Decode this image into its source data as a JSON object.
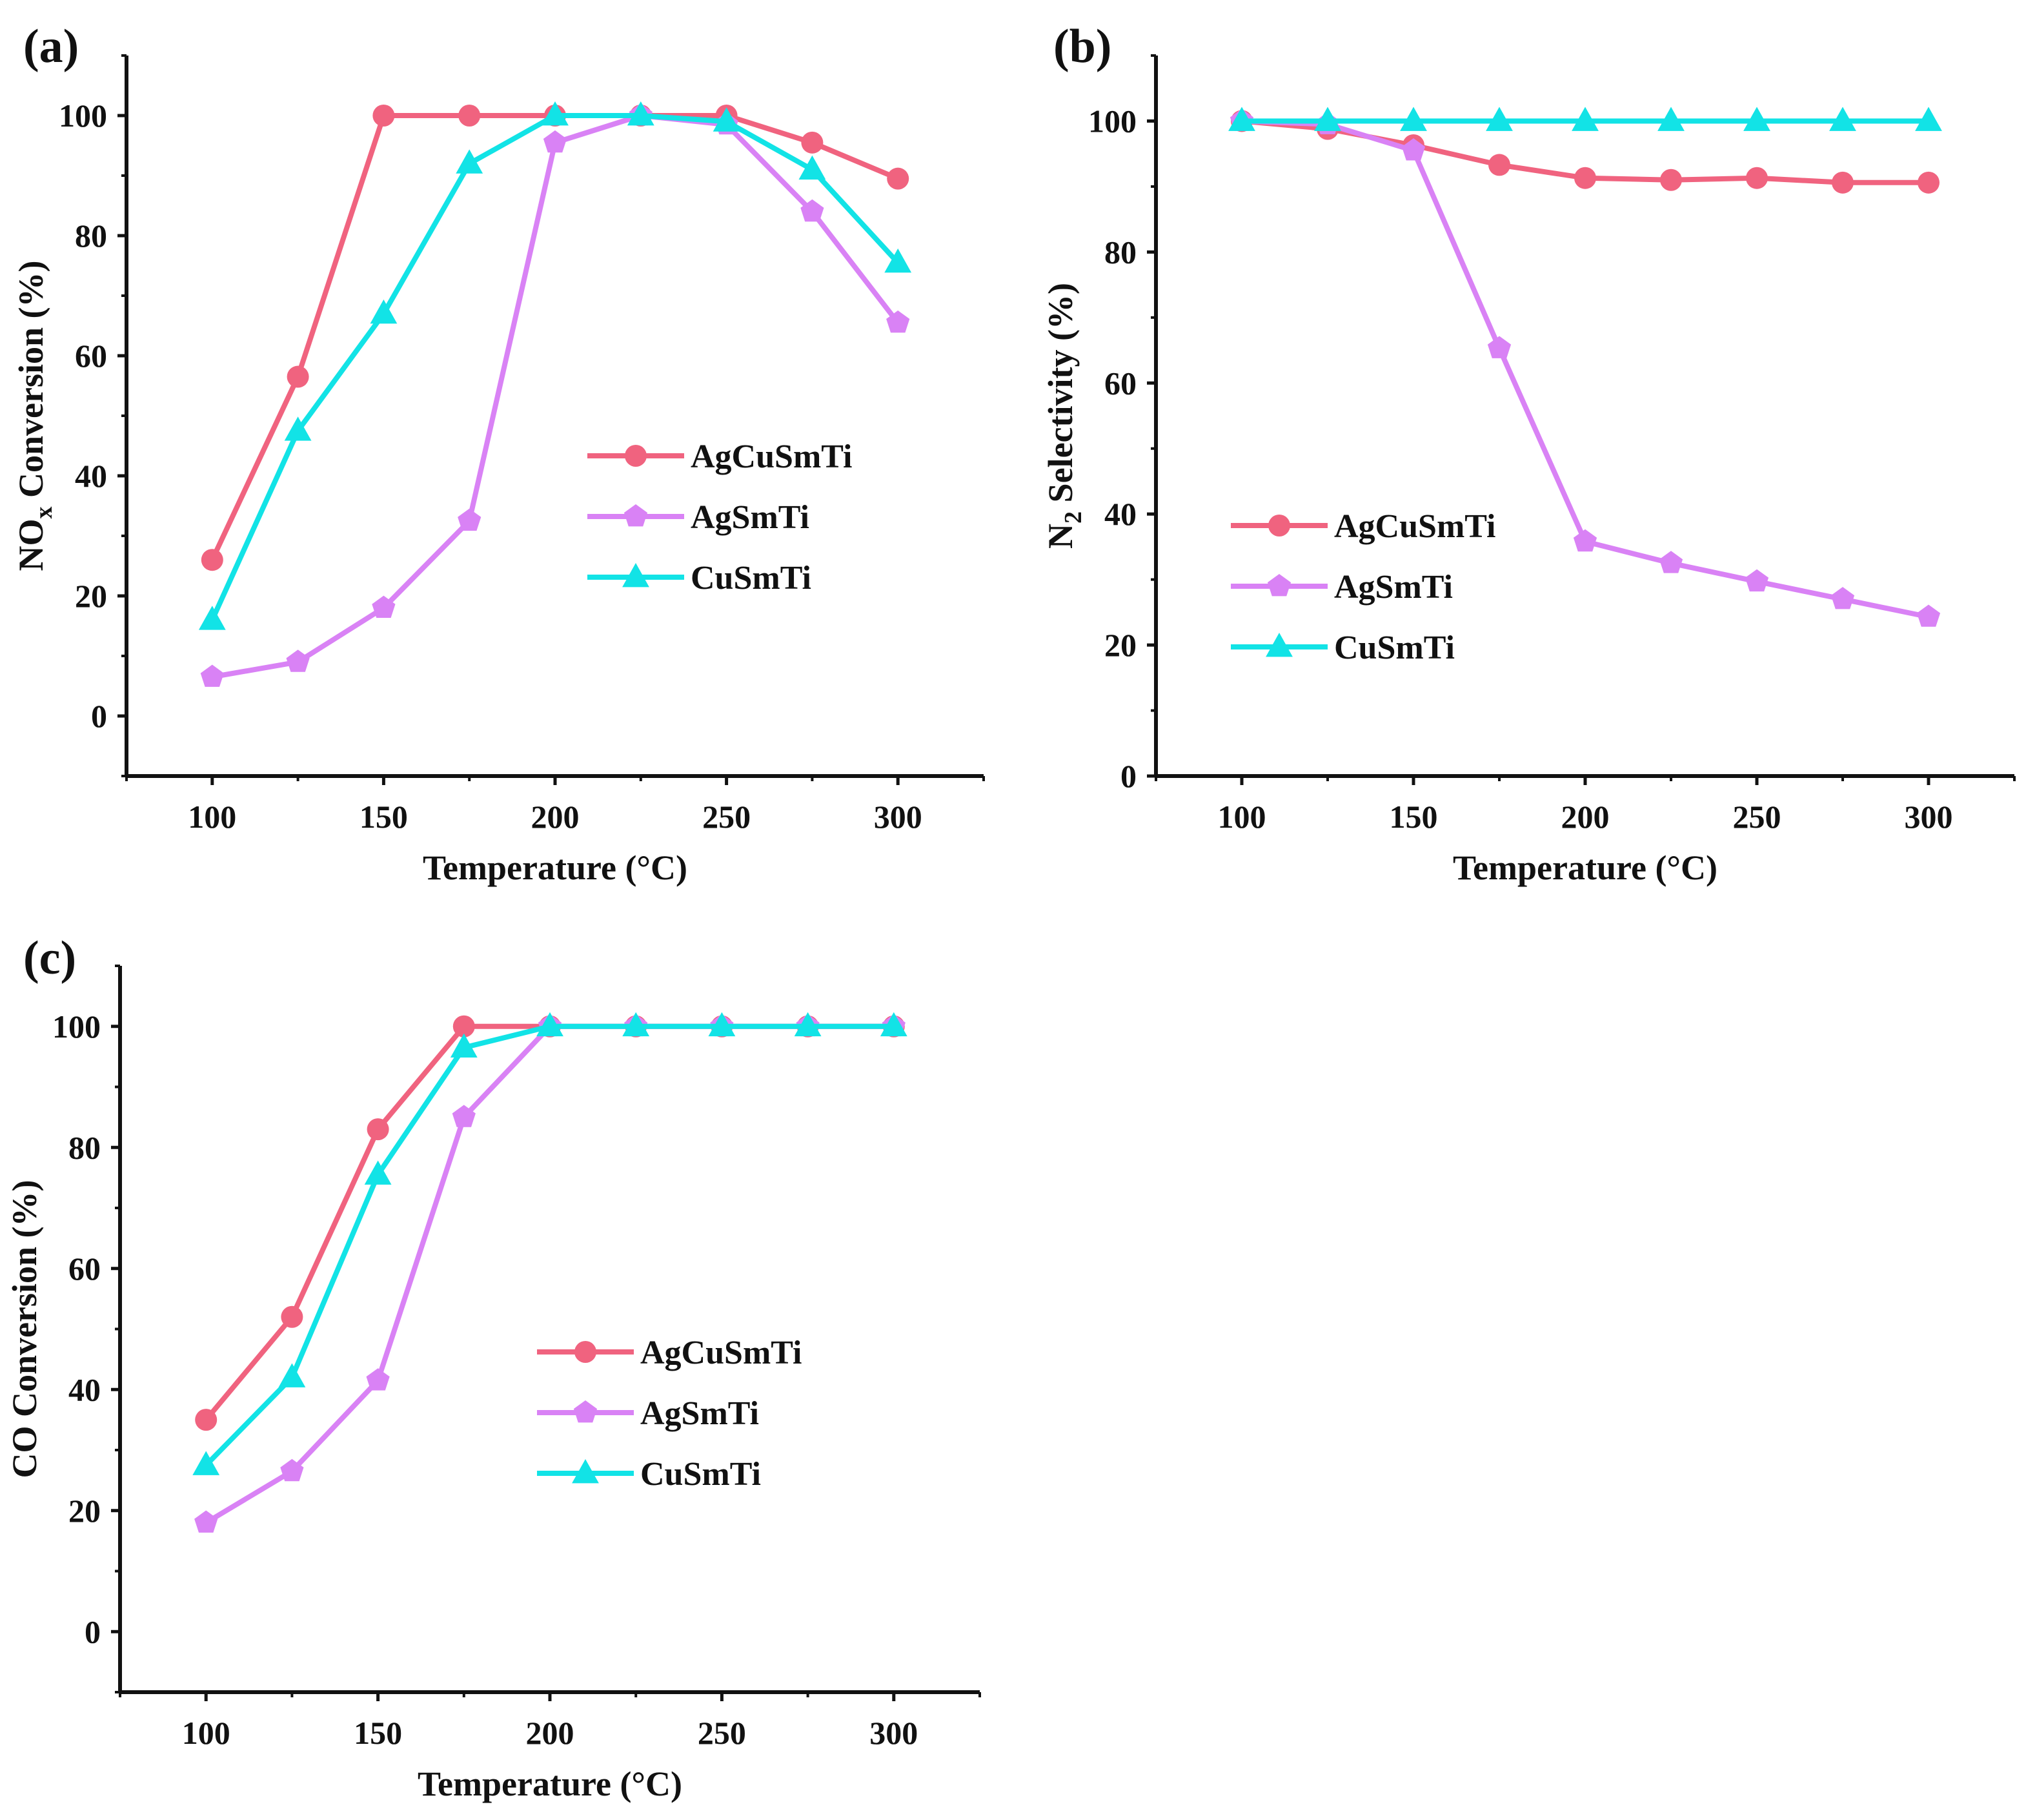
{
  "colors": {
    "AgCuSmTi": "#f0637f",
    "AgSmTi": "#d982f5",
    "CuSmTi": "#12e3e6"
  },
  "chart_data": [
    {
      "type": "line",
      "panel": "(a)",
      "xlabel": "Temperature (°C)",
      "ylabel": {
        "main": "NO",
        "sub": "x",
        "rest": " Conversion (%)"
      },
      "x": [
        100,
        125,
        150,
        175,
        200,
        225,
        250,
        275,
        300
      ],
      "xticks": [
        "100",
        "150",
        "200",
        "250",
        "300"
      ],
      "yticks": [
        "0",
        "20",
        "40",
        "60",
        "80",
        "100"
      ],
      "xlim": [
        75,
        325
      ],
      "ylim": [
        -10,
        110
      ],
      "legend": "center-right",
      "series": [
        {
          "name": "AgCuSmTi",
          "marker": "circle",
          "values": [
            26,
            56.5,
            100,
            100,
            100,
            100,
            100,
            95.5,
            89.5
          ]
        },
        {
          "name": "AgSmTi",
          "marker": "pentagon",
          "values": [
            6.5,
            9,
            18,
            32.5,
            95.5,
            100,
            98.5,
            84,
            65.5
          ]
        },
        {
          "name": "CuSmTi",
          "marker": "triangle",
          "values": [
            16,
            47.5,
            67,
            92,
            100,
            100,
            99,
            91,
            75.5
          ]
        }
      ]
    },
    {
      "type": "line",
      "panel": "(b)",
      "xlabel": "Temperature (°C)",
      "ylabel": {
        "main": "N",
        "sub": "2",
        "rest": " Selectivity (%)"
      },
      "x": [
        100,
        125,
        150,
        175,
        200,
        225,
        250,
        275,
        300
      ],
      "xticks": [
        "100",
        "150",
        "200",
        "250",
        "300"
      ],
      "yticks": [
        "0",
        "20",
        "40",
        "60",
        "80",
        "100"
      ],
      "xlim": [
        75,
        325
      ],
      "ylim": [
        0,
        110
      ],
      "legend": "center-left",
      "series": [
        {
          "name": "AgCuSmTi",
          "marker": "circle",
          "values": [
            100,
            98.8,
            96.3,
            93.3,
            91.3,
            91,
            91.3,
            90.6,
            90.6
          ]
        },
        {
          "name": "AgSmTi",
          "marker": "pentagon",
          "values": [
            100,
            99.5,
            95.5,
            65.3,
            35.8,
            32.5,
            29.7,
            27,
            24.3
          ]
        },
        {
          "name": "CuSmTi",
          "marker": "triangle",
          "values": [
            100,
            100,
            100,
            100,
            100,
            100,
            100,
            100,
            100
          ]
        }
      ]
    },
    {
      "type": "line",
      "panel": "(c)",
      "xlabel": "Temperature (°C)",
      "ylabel": {
        "main": "CO Conversion (%)",
        "sub": "",
        "rest": ""
      },
      "x": [
        100,
        125,
        150,
        175,
        200,
        225,
        250,
        275,
        300
      ],
      "xticks": [
        "100",
        "150",
        "200",
        "250",
        "300"
      ],
      "yticks": [
        "0",
        "20",
        "40",
        "60",
        "80",
        "100"
      ],
      "xlim": [
        75,
        325
      ],
      "ylim": [
        -10,
        110
      ],
      "legend": "center-right",
      "series": [
        {
          "name": "AgCuSmTi",
          "marker": "circle",
          "values": [
            35,
            52,
            83,
            100,
            100,
            100,
            100,
            100,
            100
          ]
        },
        {
          "name": "AgSmTi",
          "marker": "pentagon",
          "values": [
            18,
            26.5,
            41.5,
            85,
            100,
            100,
            100,
            100,
            100
          ]
        },
        {
          "name": "CuSmTi",
          "marker": "triangle",
          "values": [
            27.5,
            42,
            75.5,
            96.5,
            100,
            100,
            100,
            100,
            100
          ]
        }
      ]
    }
  ]
}
